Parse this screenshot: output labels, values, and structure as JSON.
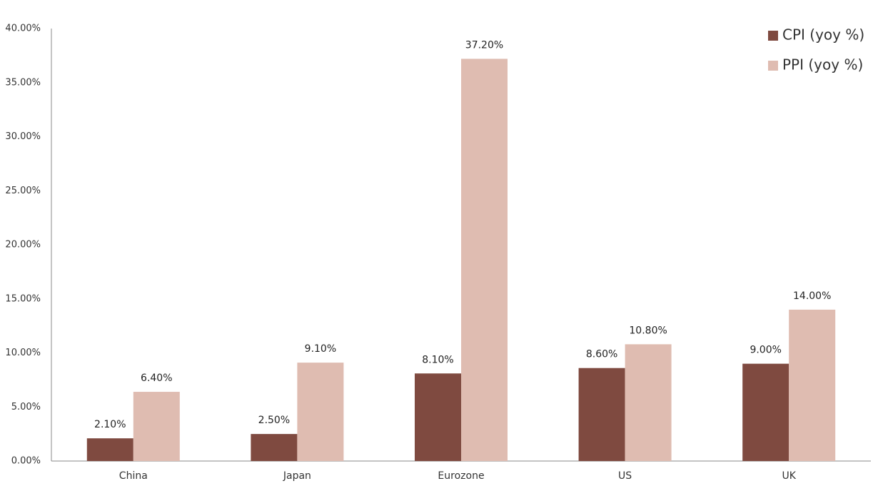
{
  "chart_data": {
    "type": "bar",
    "categories": [
      "China",
      "Japan",
      "Eurozone",
      "US",
      "UK"
    ],
    "series": [
      {
        "name": "CPI (yoy %)",
        "color": "#7f4a40",
        "values": [
          2.1,
          2.5,
          8.1,
          8.6,
          9.0
        ],
        "value_labels": [
          "2.10%",
          "2.50%",
          "8.10%",
          "8.60%",
          "9.00%"
        ]
      },
      {
        "name": "PPI (yoy %)",
        "color": "#dfbcb1",
        "values": [
          6.4,
          9.1,
          37.2,
          10.8,
          14.0
        ],
        "value_labels": [
          "6.40%",
          "9.10%",
          "37.20%",
          "10.80%",
          "14.00%"
        ]
      }
    ],
    "ylim": [
      0,
      40
    ],
    "yticks": [
      {
        "value": 0,
        "label": "0.00%"
      },
      {
        "value": 5,
        "label": "5.00%"
      },
      {
        "value": 10,
        "label": "10.00%"
      },
      {
        "value": 15,
        "label": "15.00%"
      },
      {
        "value": 20,
        "label": "20.00%"
      },
      {
        "value": 25,
        "label": "25.00%"
      },
      {
        "value": 30,
        "label": "30.00%"
      },
      {
        "value": 35,
        "label": "35.00%"
      },
      {
        "value": 40,
        "label": "40.00%"
      }
    ],
    "legend": "upper right"
  }
}
